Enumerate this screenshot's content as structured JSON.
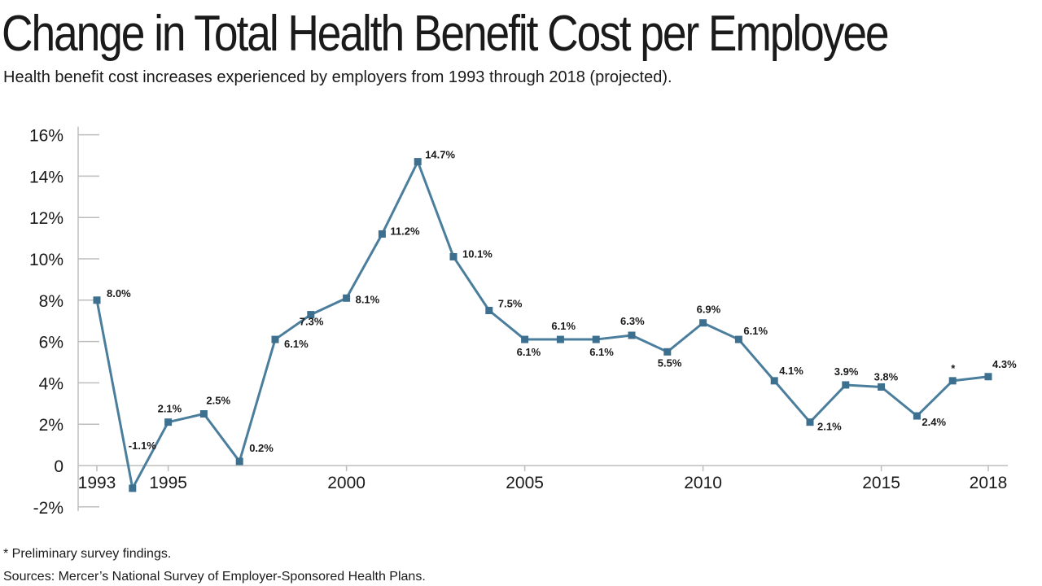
{
  "header": {
    "title": "Change in Total Health Benefit Cost per Employee",
    "subtitle": "Health benefit cost increases experienced by employers from 1993 through 2018 (projected)."
  },
  "footer": {
    "note": "* Preliminary survey findings.",
    "source": "Sources: Mercer’s National Survey of Employer-Sponsored Health Plans."
  },
  "colors": {
    "line": "#4a7e9c",
    "marker": "#3d6f8e",
    "axis": "#bdbdbd"
  },
  "chart_data": {
    "type": "line",
    "title": "Change in Total Health Benefit Cost per Employee",
    "xlabel": "",
    "ylabel": "",
    "x": [
      1993,
      1994,
      1995,
      1996,
      1997,
      1998,
      1999,
      2000,
      2001,
      2002,
      2003,
      2004,
      2005,
      2006,
      2007,
      2008,
      2009,
      2010,
      2011,
      2012,
      2013,
      2014,
      2015,
      2016,
      2017,
      2018
    ],
    "series": [
      {
        "values": [
          8.0,
          -1.1,
          2.1,
          2.5,
          0.2,
          6.1,
          7.3,
          8.1,
          11.2,
          14.7,
          10.1,
          7.5,
          6.1,
          6.1,
          6.1,
          6.3,
          5.5,
          6.9,
          6.1,
          4.1,
          2.1,
          3.9,
          3.8,
          2.4,
          4.1,
          4.3
        ]
      }
    ],
    "data_labels": [
      "8.0%",
      "-1.1%",
      "2.1%",
      "2.5%",
      "0.2%",
      "6.1%",
      "7.3%",
      "8.1%",
      "11.2%",
      "14.7%",
      "10.1%",
      "7.5%",
      "6.1%",
      "6.1%",
      "6.1%",
      "6.3%",
      "5.5%",
      "6.9%",
      "6.1%",
      "4.1%",
      "2.1%",
      "3.9%",
      "3.8%",
      "2.4%",
      "*",
      "4.3%"
    ],
    "x_ticks": [
      1993,
      1995,
      2000,
      2005,
      2010,
      2015,
      2018
    ],
    "x_tick_labels": [
      "1993",
      "1995",
      "2000",
      "2005",
      "2010",
      "2015",
      "2018"
    ],
    "y_ticks": [
      -2,
      0,
      2,
      4,
      6,
      8,
      10,
      12,
      14,
      16
    ],
    "y_tick_labels": [
      "-2%",
      "0",
      "2%",
      "4%",
      "6%",
      "8%",
      "10%",
      "12%",
      "14%",
      "16%"
    ],
    "xlim": [
      1993,
      2018
    ],
    "ylim": [
      -2,
      16
    ],
    "grid": false,
    "legend": "none"
  }
}
